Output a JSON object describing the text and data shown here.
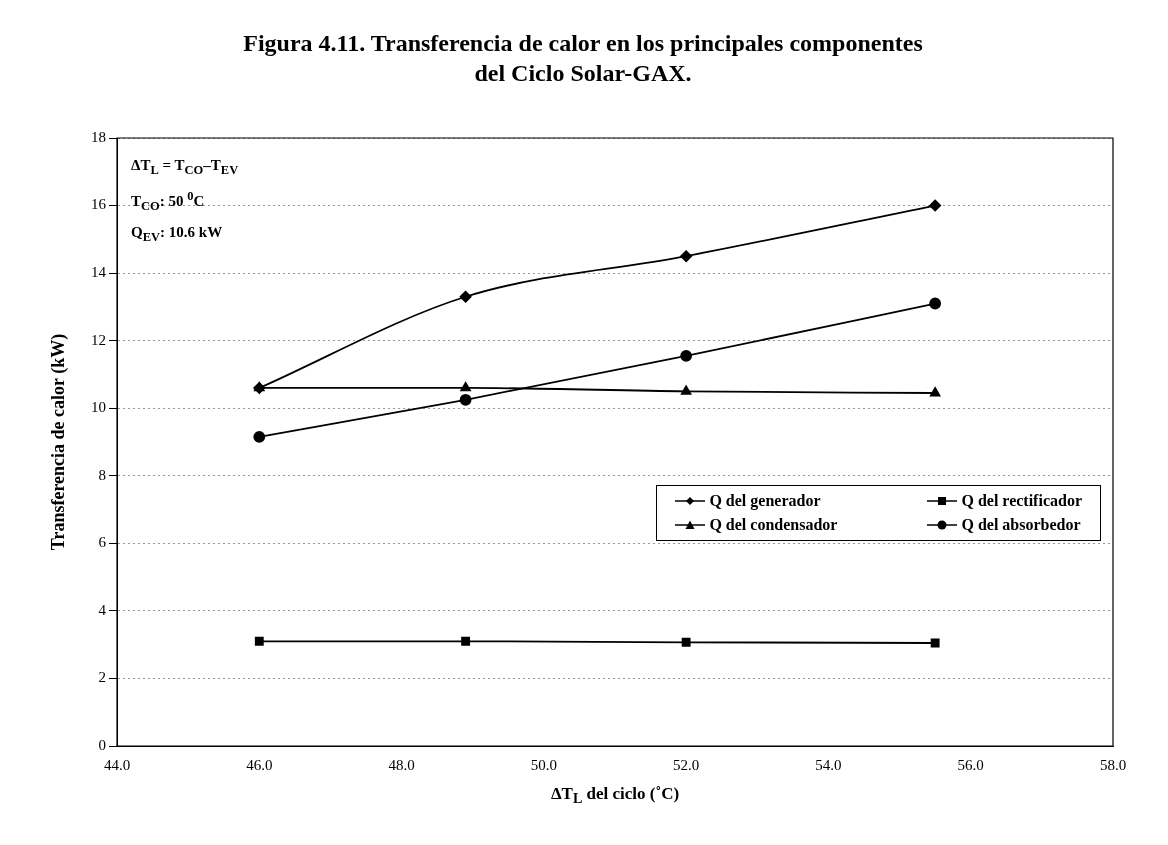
{
  "chart_data": {
    "type": "line",
    "title": "Figura 4.11. Transferencia de calor en los principales componentes\ndel Ciclo Solar-GAX.",
    "xlabel": "ΔT$_{L}$ del ciclo (˚C)",
    "ylabel": "Transferencia de calor (kW)",
    "annotations": [
      "ΔT$_{L}$ = T$_{CO}$–T$_{EV}$",
      "T$_{CO}$: 50 $^{0}$C",
      "Q$_{EV}$: 10.6 kW"
    ],
    "x": [
      46.0,
      48.9,
      52.0,
      55.5
    ],
    "series": [
      {
        "name": "Q del generador",
        "color": "#000000",
        "marker": "diamond",
        "values": [
          10.6,
          13.3,
          14.5,
          16.0
        ]
      },
      {
        "name": "Q del rectificador",
        "color": "#000000",
        "marker": "square",
        "values": [
          3.1,
          3.1,
          3.07,
          3.05
        ]
      },
      {
        "name": "Q del condensador",
        "color": "#000000",
        "marker": "triangle",
        "values": [
          10.6,
          10.6,
          10.5,
          10.45
        ]
      },
      {
        "name": "Q del absorbedor",
        "color": "#000000",
        "marker": "circle",
        "values": [
          9.15,
          10.25,
          11.55,
          13.1
        ]
      }
    ],
    "xlim": [
      44,
      58
    ],
    "xticks": [
      {
        "value": 44,
        "label": "44.0"
      },
      {
        "value": 46,
        "label": "46.0"
      },
      {
        "value": 48,
        "label": "48.0"
      },
      {
        "value": 50,
        "label": "50.0"
      },
      {
        "value": 52,
        "label": "52.0"
      },
      {
        "value": 54,
        "label": "54.0"
      },
      {
        "value": 56,
        "label": "56.0"
      },
      {
        "value": 58,
        "label": "58.0"
      }
    ],
    "ylim": [
      0,
      18
    ],
    "yticks": [
      0,
      2,
      4,
      6,
      8,
      10,
      12,
      14,
      16,
      18
    ],
    "grid": "y",
    "legend": "center right",
    "line_style": "solid"
  }
}
